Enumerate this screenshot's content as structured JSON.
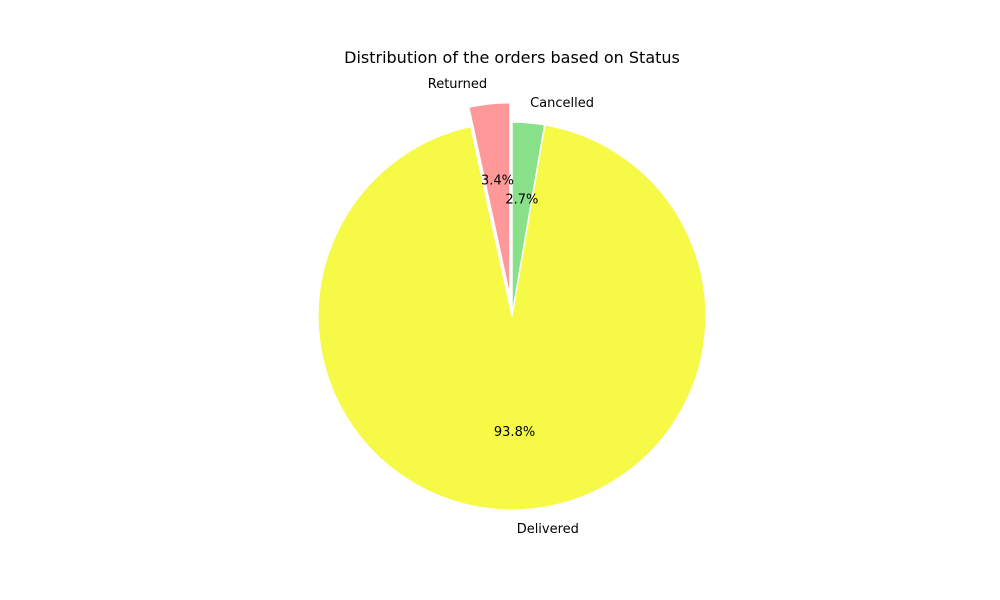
{
  "chart_data": {
    "type": "pie",
    "title": "Distribution of the orders based on Status",
    "slices": [
      {
        "label": "Cancelled",
        "value": 2.7,
        "pct_label": "2.7%",
        "color": "#88e088",
        "exploded": false
      },
      {
        "label": "Delivered",
        "value": 93.8,
        "pct_label": "93.8%",
        "color": "#f6f946",
        "exploded": false
      },
      {
        "label": "Returned",
        "value": 3.4,
        "pct_label": "3.4%",
        "color": "#ff9999",
        "exploded": true
      }
    ],
    "start_angle_deg": 90,
    "direction": "clockwise",
    "legend": "none"
  }
}
